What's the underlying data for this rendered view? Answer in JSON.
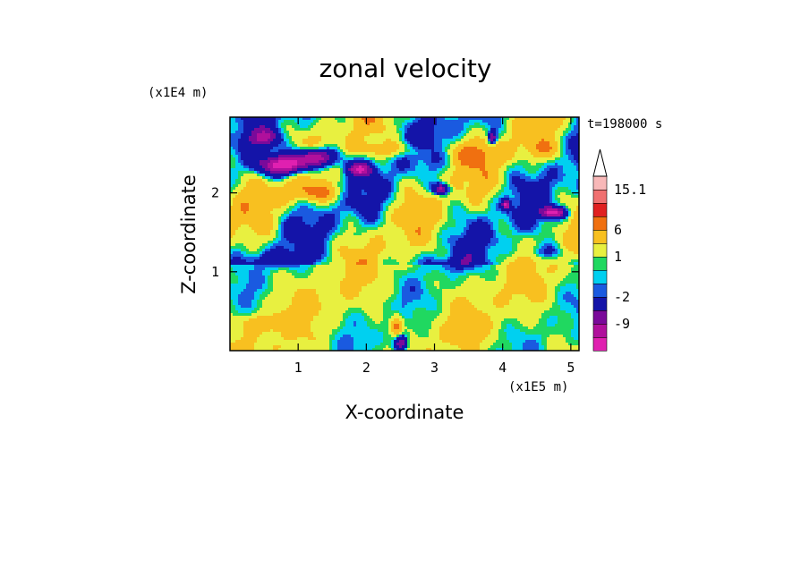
{
  "chart_data": {
    "type": "heatmap",
    "title": "zonal velocity",
    "xlabel": "X-coordinate",
    "ylabel": "Z-coordinate",
    "x_multiplier": "(x1E5 m)",
    "y_multiplier": "(x1E4 m)",
    "time_label": "t=198000 s",
    "xlim": [
      0,
      5.12
    ],
    "ylim": [
      0,
      2.96
    ],
    "x_ticks": [
      1,
      2,
      3,
      4,
      5
    ],
    "x_tick_labels": [
      "1",
      "2",
      "3",
      "4",
      "5"
    ],
    "y_ticks": [
      1,
      2
    ],
    "y_tick_labels": [
      "1",
      "2"
    ],
    "colorbar": {
      "levels": [
        -15.1,
        -12,
        -9,
        -6,
        -2,
        -1,
        0,
        1,
        3,
        6,
        9,
        12,
        15.1
      ],
      "colors": [
        "#e020b0",
        "#b0109c",
        "#7a0a9a",
        "#1414a8",
        "#1a5ae0",
        "#00d0f0",
        "#20d860",
        "#e8f040",
        "#f8c020",
        "#f07010",
        "#e02020",
        "#f07070",
        "#f8b8b8"
      ],
      "tick_labels": [
        "15.1",
        "6",
        "1",
        "-2",
        "-9"
      ],
      "tick_values": [
        15.1,
        6,
        1,
        -2,
        -9
      ],
      "extend_top": true
    }
  }
}
